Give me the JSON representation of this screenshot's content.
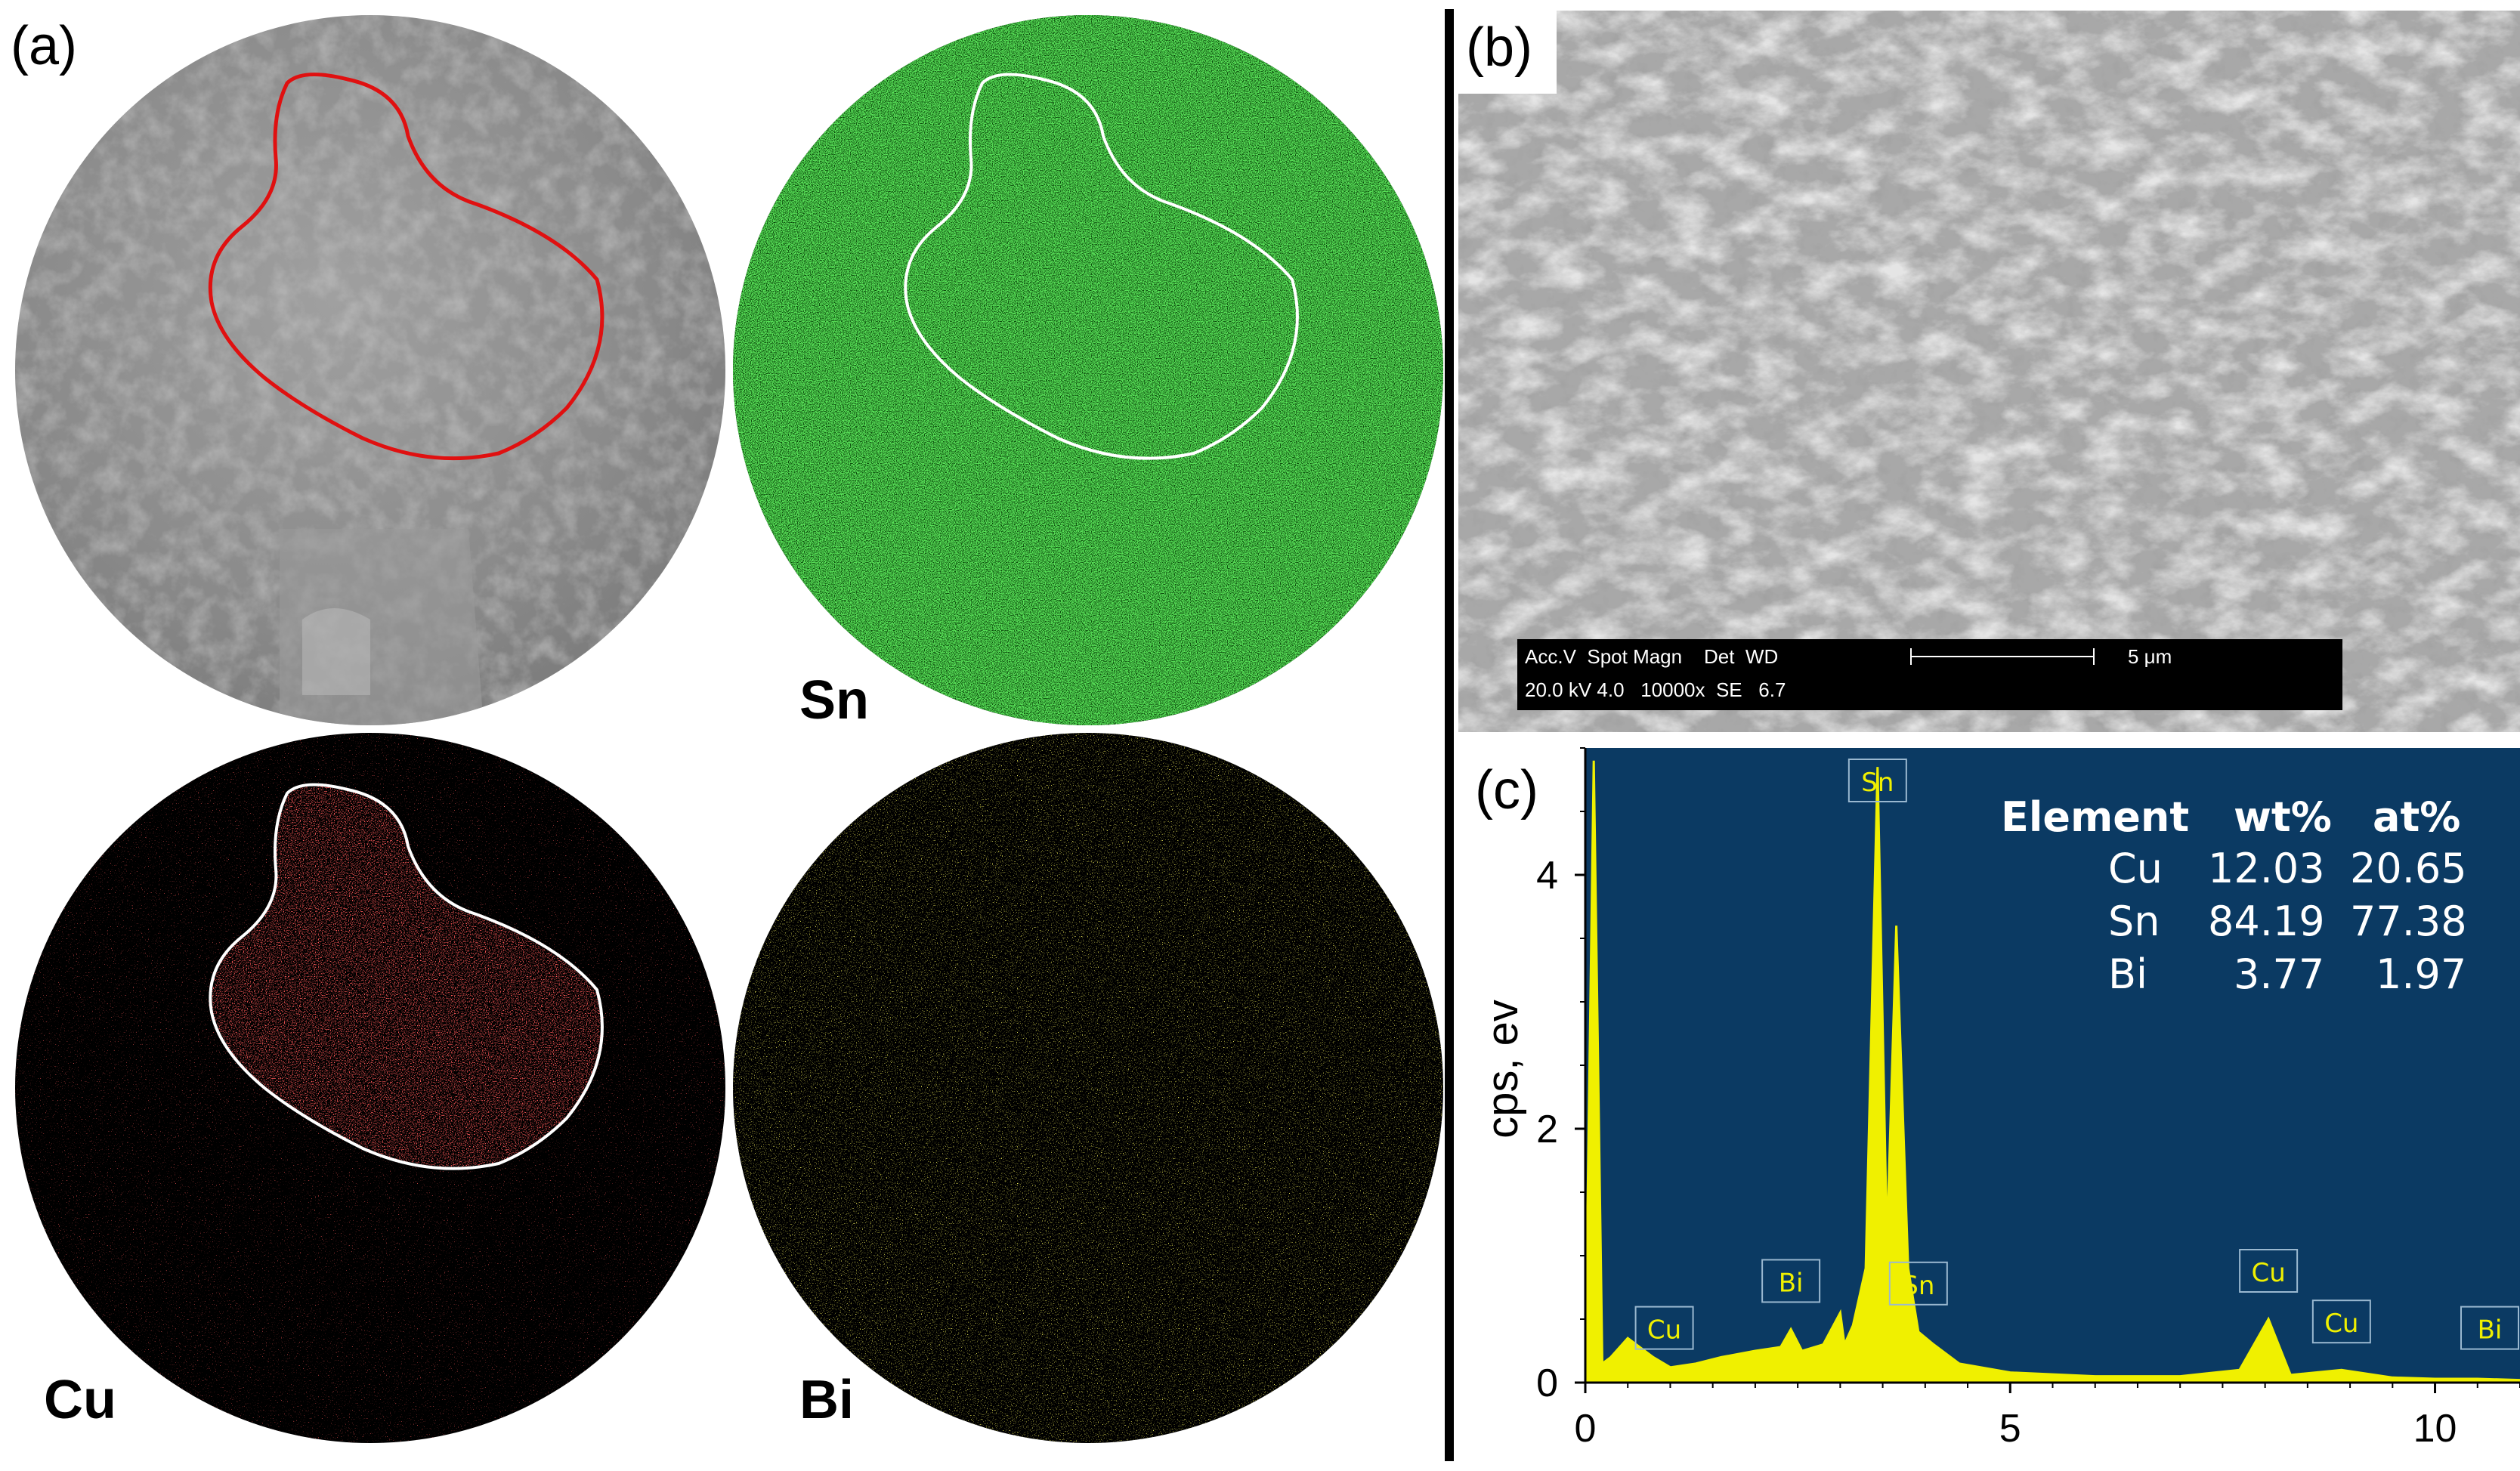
{
  "panel_a": {
    "label": "(a)",
    "map_labels": {
      "sn": "Sn",
      "cu": "Cu",
      "bi": "Bi"
    },
    "colors": {
      "sem": "#8c8c8c",
      "sn": "#1ec81e",
      "cu": "#ff1e1e",
      "bi": "#d7d21e",
      "outline_sem": "#e01010",
      "outline_map": "#ffffff"
    }
  },
  "panel_b": {
    "label": "(b)",
    "databar": {
      "headers": "Acc.V  Spot Magn    Det  WD",
      "values": "20.0 kV 4.0   10000x  SE   6.7",
      "scale": "5 μm"
    }
  },
  "panel_c": {
    "label": "(c)",
    "colors": {
      "background": "#0b3a63",
      "spectrum": "#f0f000",
      "text": "#ffffff"
    },
    "table": {
      "headers": [
        "Element",
        "wt%",
        "at%"
      ],
      "rows": [
        [
          "Cu",
          "12.03",
          "20.65"
        ],
        [
          "Sn",
          "84.19",
          "77.38"
        ],
        [
          "Bi",
          "3.77",
          "1.97"
        ]
      ]
    },
    "chart_data": {
      "type": "line",
      "xlabel": "",
      "ylabel": "cps, ev",
      "xlim": [
        0,
        11
      ],
      "ylim": [
        0,
        5
      ],
      "xticks": [
        0,
        5,
        10
      ],
      "yticks": [
        0,
        2,
        4
      ],
      "series": [
        {
          "x": [
            0.0,
            0.1,
            0.2,
            0.3,
            0.5,
            0.8,
            1.0,
            1.3,
            1.6,
            2.0,
            2.3,
            2.42,
            2.55,
            2.8,
            3.0,
            3.05,
            3.15,
            3.3,
            3.44,
            3.55,
            3.66,
            3.8,
            3.92,
            4.1,
            4.4,
            5.0,
            6.0,
            7.0,
            7.7,
            8.04,
            8.3,
            8.9,
            9.5,
            10.0,
            10.5,
            11.0
          ],
          "y": [
            0.1,
            4.9,
            0.15,
            0.2,
            0.35,
            0.2,
            0.12,
            0.15,
            0.2,
            0.25,
            0.28,
            0.42,
            0.25,
            0.3,
            0.55,
            0.3,
            0.45,
            0.9,
            4.85,
            1.1,
            3.6,
            0.9,
            0.4,
            0.3,
            0.15,
            0.08,
            0.05,
            0.05,
            0.1,
            0.5,
            0.06,
            0.1,
            0.04,
            0.03,
            0.03,
            0.02
          ]
        }
      ],
      "peak_labels": [
        {
          "text": "Cu",
          "x": 0.93,
          "y": 0.05
        },
        {
          "text": "Bi",
          "x": 2.42,
          "y": 0.42
        },
        {
          "text": "Sn",
          "x": 3.44,
          "y": 4.85
        },
        {
          "text": "Sn",
          "x": 3.92,
          "y": 0.4
        },
        {
          "text": "Cu",
          "x": 8.04,
          "y": 0.5
        },
        {
          "text": "Cu",
          "x": 8.9,
          "y": 0.1
        },
        {
          "text": "Bi",
          "x": 10.84,
          "y": 0.05
        }
      ]
    }
  }
}
